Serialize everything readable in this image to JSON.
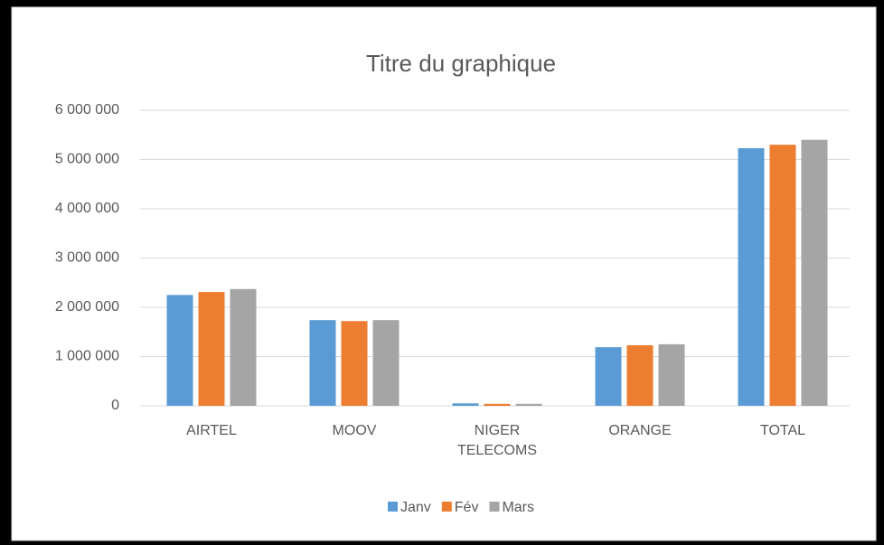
{
  "chart_data": {
    "type": "bar",
    "title": "Titre du graphique",
    "categories": [
      "AIRTEL",
      "MOOV",
      "NIGER TELECOMS",
      "ORANGE",
      "TOTAL"
    ],
    "series": [
      {
        "name": "Janv",
        "color": "#5b9bd5",
        "values": [
          2250000,
          1740000,
          50000,
          1190000,
          5230000
        ]
      },
      {
        "name": "Fév",
        "color": "#ed7d31",
        "values": [
          2310000,
          1720000,
          40000,
          1230000,
          5300000
        ]
      },
      {
        "name": "Mars",
        "color": "#a5a5a5",
        "values": [
          2370000,
          1740000,
          40000,
          1250000,
          5400000
        ]
      }
    ],
    "ylim": [
      0,
      6000000
    ],
    "yticks": [
      0,
      {
        "value": 1000000,
        "label": "1 000 000"
      },
      {
        "value": 2000000,
        "label": "2 000 000"
      },
      {
        "value": 3000000,
        "label": "3 000 000"
      },
      {
        "value": 4000000,
        "label": "4 000 000"
      },
      {
        "value": 5000000,
        "label": "5 000 000"
      },
      {
        "value": 6000000,
        "label": "6 000 000"
      }
    ],
    "grid": true,
    "legend": "bottom"
  }
}
